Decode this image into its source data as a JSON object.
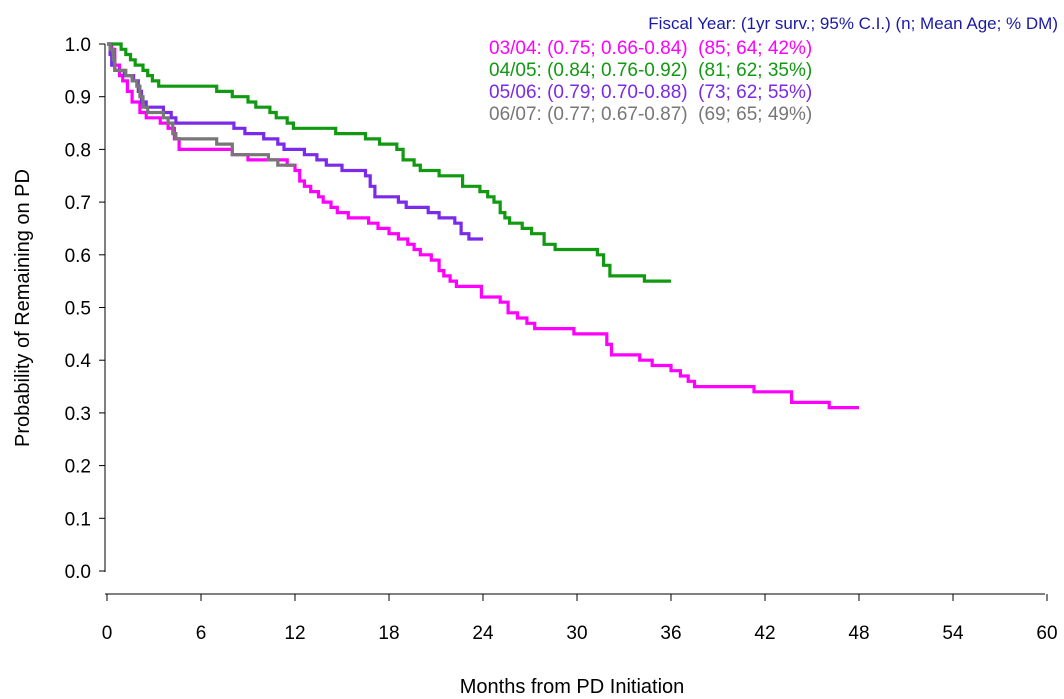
{
  "chart_data": {
    "type": "line",
    "step": true,
    "xlabel": "Months from PD Initiation",
    "ylabel": "Probability of Remaining on PD",
    "xlim": [
      0,
      60
    ],
    "ylim": [
      0,
      1.0
    ],
    "x_ticks": [
      "0",
      "6",
      "12",
      "18",
      "24",
      "30",
      "36",
      "42",
      "48",
      "54",
      "60"
    ],
    "y_ticks": [
      "0.0",
      "0.1",
      "0.2",
      "0.3",
      "0.4",
      "0.5",
      "0.6",
      "0.7",
      "0.8",
      "0.9",
      "1.0"
    ],
    "grid": false,
    "legend_position": "top-right",
    "legend_title": "Fiscal Year: (1yr surv.; 95% C.I.) (n; Mean Age; % DM)",
    "legend_title_color": "#1a1aa6",
    "series": [
      {
        "name": "03/04",
        "label": "03/04: (0.75; 0.66-0.84)  (85; 64; 42%)",
        "color": "#ff00ff",
        "points": [
          [
            0,
            1.0
          ],
          [
            0.3,
            0.99
          ],
          [
            0.5,
            0.96
          ],
          [
            0.8,
            0.94
          ],
          [
            1.0,
            0.93
          ],
          [
            1.3,
            0.91
          ],
          [
            1.6,
            0.89
          ],
          [
            2.1,
            0.87
          ],
          [
            2.5,
            0.86
          ],
          [
            3.4,
            0.85
          ],
          [
            3.9,
            0.84
          ],
          [
            4.3,
            0.82
          ],
          [
            4.6,
            0.8
          ],
          [
            6.5,
            0.8
          ],
          [
            8.0,
            0.79
          ],
          [
            9.0,
            0.78
          ],
          [
            11.5,
            0.77
          ],
          [
            12.0,
            0.76
          ],
          [
            12.3,
            0.74
          ],
          [
            12.6,
            0.73
          ],
          [
            13.0,
            0.72
          ],
          [
            13.5,
            0.71
          ],
          [
            13.8,
            0.7
          ],
          [
            14.3,
            0.69
          ],
          [
            14.7,
            0.68
          ],
          [
            15.4,
            0.67
          ],
          [
            16.7,
            0.66
          ],
          [
            17.3,
            0.65
          ],
          [
            18.0,
            0.64
          ],
          [
            18.6,
            0.63
          ],
          [
            19.2,
            0.62
          ],
          [
            19.6,
            0.61
          ],
          [
            20.0,
            0.6
          ],
          [
            20.7,
            0.59
          ],
          [
            21.2,
            0.57
          ],
          [
            21.5,
            0.56
          ],
          [
            21.9,
            0.55
          ],
          [
            22.3,
            0.54
          ],
          [
            23.9,
            0.52
          ],
          [
            25.1,
            0.51
          ],
          [
            25.6,
            0.49
          ],
          [
            26.2,
            0.48
          ],
          [
            26.8,
            0.47
          ],
          [
            27.3,
            0.46
          ],
          [
            29.8,
            0.45
          ],
          [
            31.9,
            0.43
          ],
          [
            32.2,
            0.41
          ],
          [
            34.0,
            0.4
          ],
          [
            34.8,
            0.39
          ],
          [
            36.0,
            0.38
          ],
          [
            36.6,
            0.37
          ],
          [
            37.1,
            0.36
          ],
          [
            37.5,
            0.35
          ],
          [
            41.3,
            0.34
          ],
          [
            43.7,
            0.32
          ],
          [
            46.1,
            0.31
          ],
          [
            48.0,
            0.31
          ]
        ]
      },
      {
        "name": "04/05",
        "label": "04/05: (0.84; 0.76-0.92)  (81; 62; 35%)",
        "color": "#119911",
        "points": [
          [
            0,
            1.0
          ],
          [
            0.9,
            0.99
          ],
          [
            1.2,
            0.98
          ],
          [
            1.5,
            0.97
          ],
          [
            1.8,
            0.96
          ],
          [
            2.3,
            0.95
          ],
          [
            2.6,
            0.94
          ],
          [
            2.9,
            0.93
          ],
          [
            3.3,
            0.92
          ],
          [
            7.0,
            0.91
          ],
          [
            8.0,
            0.9
          ],
          [
            9.0,
            0.89
          ],
          [
            9.5,
            0.88
          ],
          [
            10.4,
            0.87
          ],
          [
            10.8,
            0.86
          ],
          [
            11.5,
            0.85
          ],
          [
            11.9,
            0.84
          ],
          [
            14.6,
            0.83
          ],
          [
            16.5,
            0.82
          ],
          [
            17.4,
            0.81
          ],
          [
            18.5,
            0.8
          ],
          [
            18.9,
            0.78
          ],
          [
            19.6,
            0.77
          ],
          [
            20.0,
            0.76
          ],
          [
            21.2,
            0.75
          ],
          [
            22.7,
            0.73
          ],
          [
            23.8,
            0.72
          ],
          [
            24.3,
            0.71
          ],
          [
            24.7,
            0.7
          ],
          [
            25.1,
            0.68
          ],
          [
            25.4,
            0.67
          ],
          [
            25.7,
            0.66
          ],
          [
            26.5,
            0.65
          ],
          [
            27.1,
            0.64
          ],
          [
            27.9,
            0.62
          ],
          [
            28.6,
            0.61
          ],
          [
            31.3,
            0.6
          ],
          [
            31.7,
            0.58
          ],
          [
            32.1,
            0.56
          ],
          [
            34.3,
            0.55
          ],
          [
            36.0,
            0.55
          ]
        ]
      },
      {
        "name": "05/06",
        "label": "05/06: (0.79; 0.70-0.88)  (73; 62; 55%)",
        "color": "#7a2ae8",
        "points": [
          [
            0,
            1.0
          ],
          [
            0.2,
            0.98
          ],
          [
            0.3,
            0.96
          ],
          [
            0.5,
            0.95
          ],
          [
            1.1,
            0.94
          ],
          [
            1.7,
            0.93
          ],
          [
            2.0,
            0.91
          ],
          [
            2.2,
            0.89
          ],
          [
            2.5,
            0.88
          ],
          [
            3.6,
            0.87
          ],
          [
            4.1,
            0.86
          ],
          [
            4.4,
            0.85
          ],
          [
            7.0,
            0.85
          ],
          [
            8.1,
            0.84
          ],
          [
            8.8,
            0.83
          ],
          [
            10.0,
            0.82
          ],
          [
            10.9,
            0.81
          ],
          [
            11.3,
            0.8
          ],
          [
            12.6,
            0.79
          ],
          [
            13.4,
            0.78
          ],
          [
            14.0,
            0.77
          ],
          [
            15.0,
            0.76
          ],
          [
            16.5,
            0.75
          ],
          [
            16.8,
            0.73
          ],
          [
            17.1,
            0.71
          ],
          [
            18.6,
            0.7
          ],
          [
            19.1,
            0.69
          ],
          [
            20.5,
            0.68
          ],
          [
            21.2,
            0.67
          ],
          [
            22.2,
            0.66
          ],
          [
            22.6,
            0.64
          ],
          [
            23.1,
            0.63
          ],
          [
            24.0,
            0.63
          ]
        ]
      },
      {
        "name": "06/07",
        "label": "06/07: (0.77; 0.67-0.87)  (69; 65; 49%)",
        "color": "#777777",
        "points": [
          [
            0,
            1.0
          ],
          [
            0.2,
            0.99
          ],
          [
            0.4,
            0.97
          ],
          [
            0.5,
            0.95
          ],
          [
            1.2,
            0.94
          ],
          [
            1.6,
            0.93
          ],
          [
            1.9,
            0.92
          ],
          [
            2.1,
            0.9
          ],
          [
            2.3,
            0.88
          ],
          [
            2.6,
            0.87
          ],
          [
            3.6,
            0.86
          ],
          [
            3.9,
            0.85
          ],
          [
            4.2,
            0.83
          ],
          [
            4.4,
            0.82
          ],
          [
            7.0,
            0.81
          ],
          [
            8.0,
            0.79
          ],
          [
            10.3,
            0.78
          ],
          [
            10.9,
            0.77
          ],
          [
            12.0,
            0.77
          ]
        ]
      }
    ]
  }
}
